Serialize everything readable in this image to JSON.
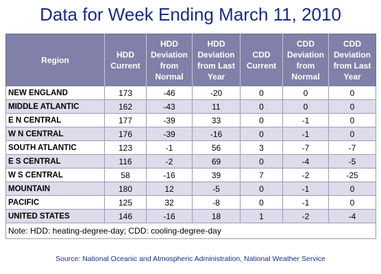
{
  "title": "Data for Week Ending March 11, 2010",
  "table": {
    "headers": [
      "Region",
      "HDD Current",
      "HDD Deviation from Normal",
      "HDD Deviation from Last Year",
      "CDD Current",
      "CDD Deviation from Normal",
      "CDD Deviation from Last Year"
    ],
    "rows": [
      [
        "NEW ENGLAND",
        "173",
        "-46",
        "-20",
        "0",
        "0",
        "0"
      ],
      [
        "MIDDLE ATLANTIC",
        "162",
        "-43",
        "11",
        "0",
        "0",
        "0"
      ],
      [
        "E N CENTRAL",
        "177",
        "-39",
        "33",
        "0",
        "-1",
        "0"
      ],
      [
        "W N CENTRAL",
        "176",
        "-39",
        "-16",
        "0",
        "-1",
        "0"
      ],
      [
        "SOUTH ATLANTIC",
        "123",
        "-1",
        "56",
        "3",
        "-7",
        "-7"
      ],
      [
        "E S CENTRAL",
        "116",
        "-2",
        "69",
        "0",
        "-4",
        "-5"
      ],
      [
        "W S CENTRAL",
        "58",
        "-16",
        "39",
        "7",
        "-2",
        "-25"
      ],
      [
        "MOUNTAIN",
        "180",
        "12",
        "-5",
        "0",
        "-1",
        "0"
      ],
      [
        "PACIFIC",
        "125",
        "32",
        "-8",
        "0",
        "-1",
        "0"
      ],
      [
        "UNITED STATES",
        "146",
        "-16",
        "18",
        "1",
        "-2",
        "-4"
      ]
    ],
    "note": "Note: HDD: heating-degree-day; CDD: cooling-degree-day"
  },
  "source": "Source:  National Oceanic and Atmospheric Administration, National Weather Service",
  "colors": {
    "title": "#1a2a8a",
    "header_bg": "#8080a8",
    "alt_row_bg": "#dcdcea"
  }
}
